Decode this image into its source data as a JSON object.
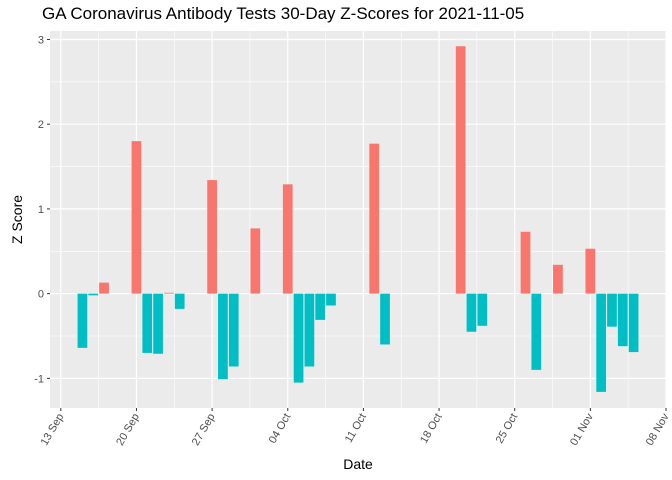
{
  "chart_data": {
    "type": "bar",
    "title": "GA Coronavirus Antibody Tests 30-Day Z-Scores for 2021-11-05",
    "xlabel": "Date",
    "ylabel": "Z Score",
    "ylim": [
      -1.35,
      3.1
    ],
    "xlim": [
      "2021-09-12",
      "2021-11-08"
    ],
    "y_ticks": [
      -1,
      0,
      1,
      2,
      3
    ],
    "x_ticks": [
      {
        "date": "2021-09-13",
        "label": "13 Sep"
      },
      {
        "date": "2021-09-20",
        "label": "20 Sep"
      },
      {
        "date": "2021-09-27",
        "label": "27 Sep"
      },
      {
        "date": "2021-10-04",
        "label": "04 Oct"
      },
      {
        "date": "2021-10-11",
        "label": "11 Oct"
      },
      {
        "date": "2021-10-18",
        "label": "18 Oct"
      },
      {
        "date": "2021-10-25",
        "label": "25 Oct"
      },
      {
        "date": "2021-11-01",
        "label": "01 Nov"
      },
      {
        "date": "2021-11-08",
        "label": "08 Nov"
      }
    ],
    "colors": {
      "positive": "#F8766D",
      "negative": "#00BFC4",
      "panel": "#EBEBEB",
      "grid": "#FFFFFF"
    },
    "grid": true,
    "legend": "none",
    "points": [
      {
        "date": "2021-09-15",
        "value": -0.64
      },
      {
        "date": "2021-09-16",
        "value": -0.02
      },
      {
        "date": "2021-09-17",
        "value": 0.13
      },
      {
        "date": "2021-09-20",
        "value": 1.8
      },
      {
        "date": "2021-09-21",
        "value": -0.7
      },
      {
        "date": "2021-09-22",
        "value": -0.71
      },
      {
        "date": "2021-09-23",
        "value": 0.01
      },
      {
        "date": "2021-09-24",
        "value": -0.18
      },
      {
        "date": "2021-09-27",
        "value": 1.34
      },
      {
        "date": "2021-09-28",
        "value": -1.01
      },
      {
        "date": "2021-09-29",
        "value": -0.86
      },
      {
        "date": "2021-10-01",
        "value": 0.77
      },
      {
        "date": "2021-10-04",
        "value": 1.29
      },
      {
        "date": "2021-10-05",
        "value": -1.05
      },
      {
        "date": "2021-10-06",
        "value": -0.86
      },
      {
        "date": "2021-10-07",
        "value": -0.31
      },
      {
        "date": "2021-10-08",
        "value": -0.14
      },
      {
        "date": "2021-10-12",
        "value": 1.77
      },
      {
        "date": "2021-10-13",
        "value": -0.6
      },
      {
        "date": "2021-10-20",
        "value": 2.92
      },
      {
        "date": "2021-10-21",
        "value": -0.45
      },
      {
        "date": "2021-10-22",
        "value": -0.38
      },
      {
        "date": "2021-10-26",
        "value": 0.73
      },
      {
        "date": "2021-10-27",
        "value": -0.9
      },
      {
        "date": "2021-10-29",
        "value": 0.34
      },
      {
        "date": "2021-11-01",
        "value": 0.53
      },
      {
        "date": "2021-11-02",
        "value": -1.16
      },
      {
        "date": "2021-11-03",
        "value": -0.39
      },
      {
        "date": "2021-11-04",
        "value": -0.62
      },
      {
        "date": "2021-11-05",
        "value": -0.69
      }
    ]
  }
}
